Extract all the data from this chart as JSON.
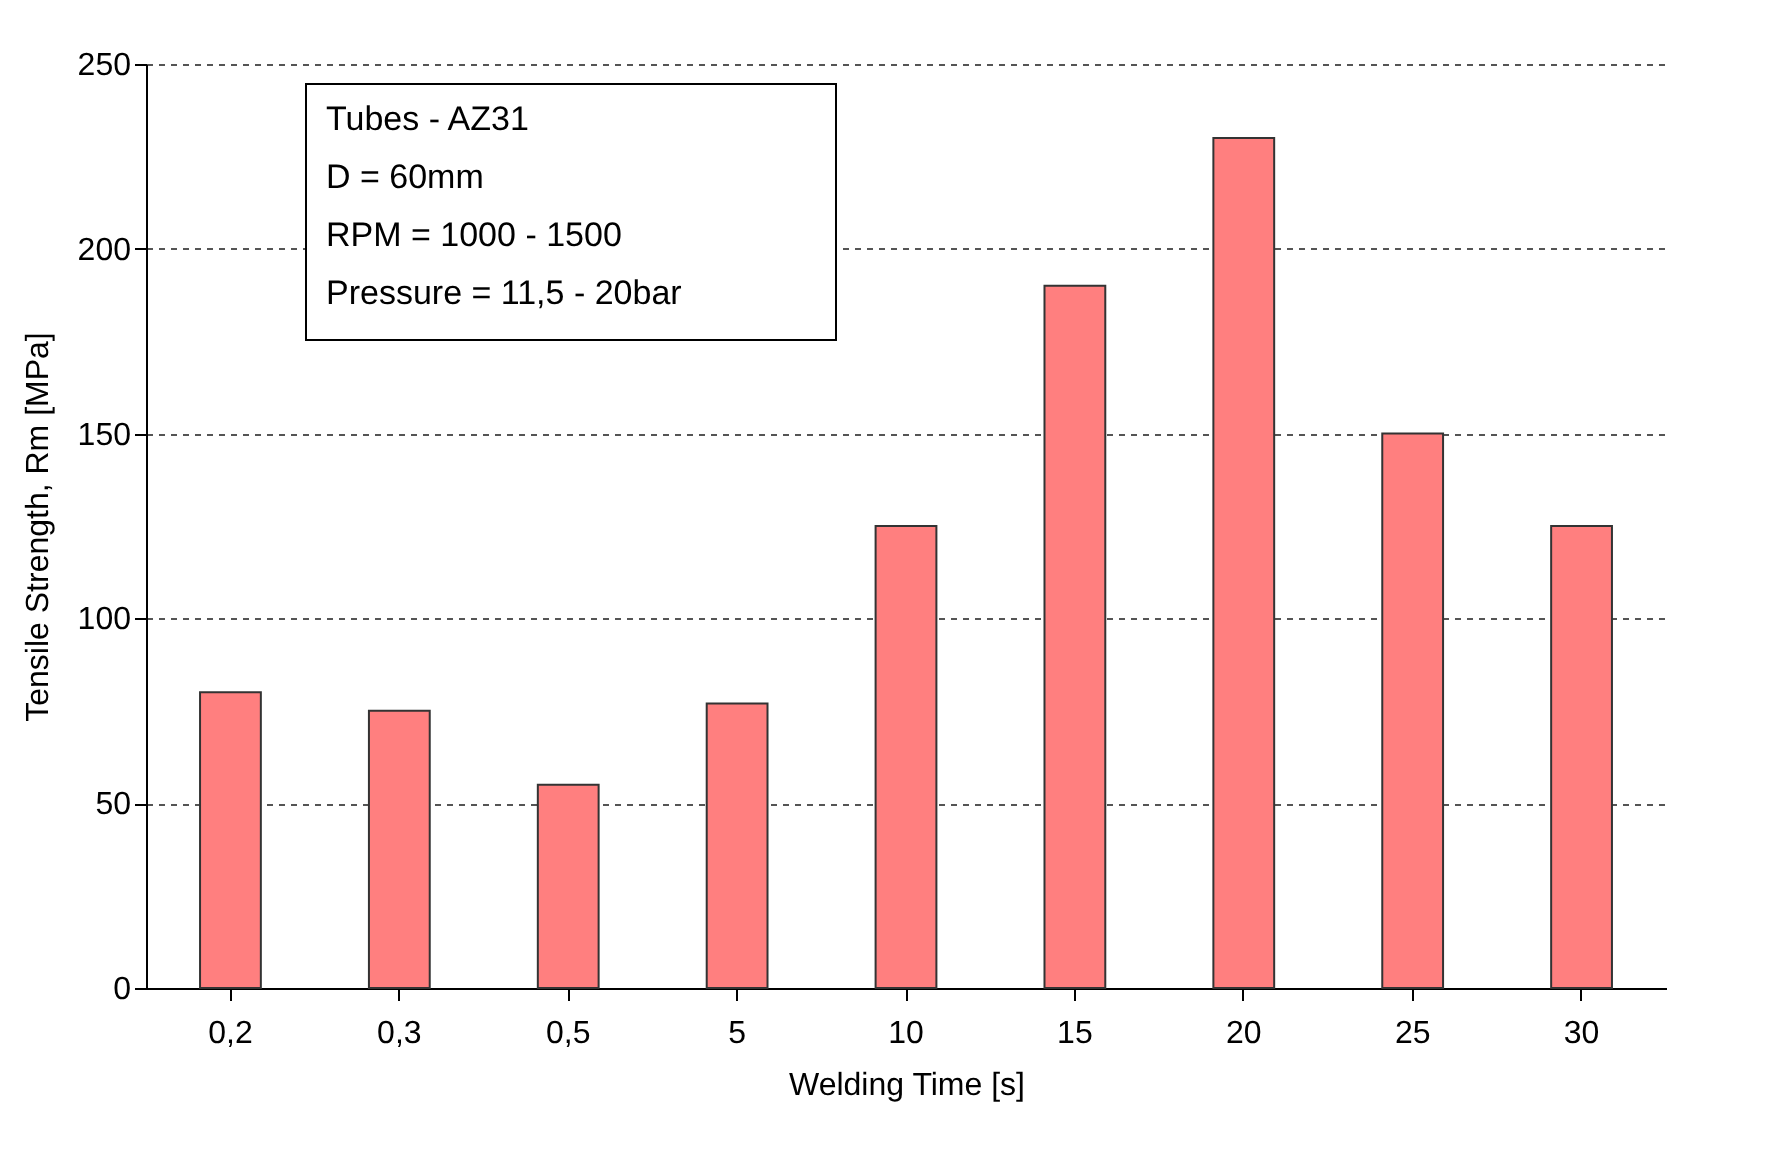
{
  "chart_data": {
    "type": "bar",
    "xlabel": "Welding Time [s]",
    "ylabel": "Tensile Strength, Rm [MPa]",
    "categories": [
      "0,2",
      "0,3",
      "0,5",
      "5",
      "10",
      "15",
      "20",
      "25",
      "30"
    ],
    "values": [
      80,
      75,
      55,
      77,
      125,
      190,
      230,
      150,
      125
    ],
    "color": "#ff7f7f",
    "ylim": [
      0,
      250
    ],
    "yticks": [
      0,
      50,
      100,
      150,
      200,
      250
    ],
    "grid": "y",
    "annotations": [
      "Tubes - AZ31",
      "D = 60mm",
      "RPM = 1000 - 1500",
      "Pressure = 11,5 - 20bar"
    ]
  }
}
